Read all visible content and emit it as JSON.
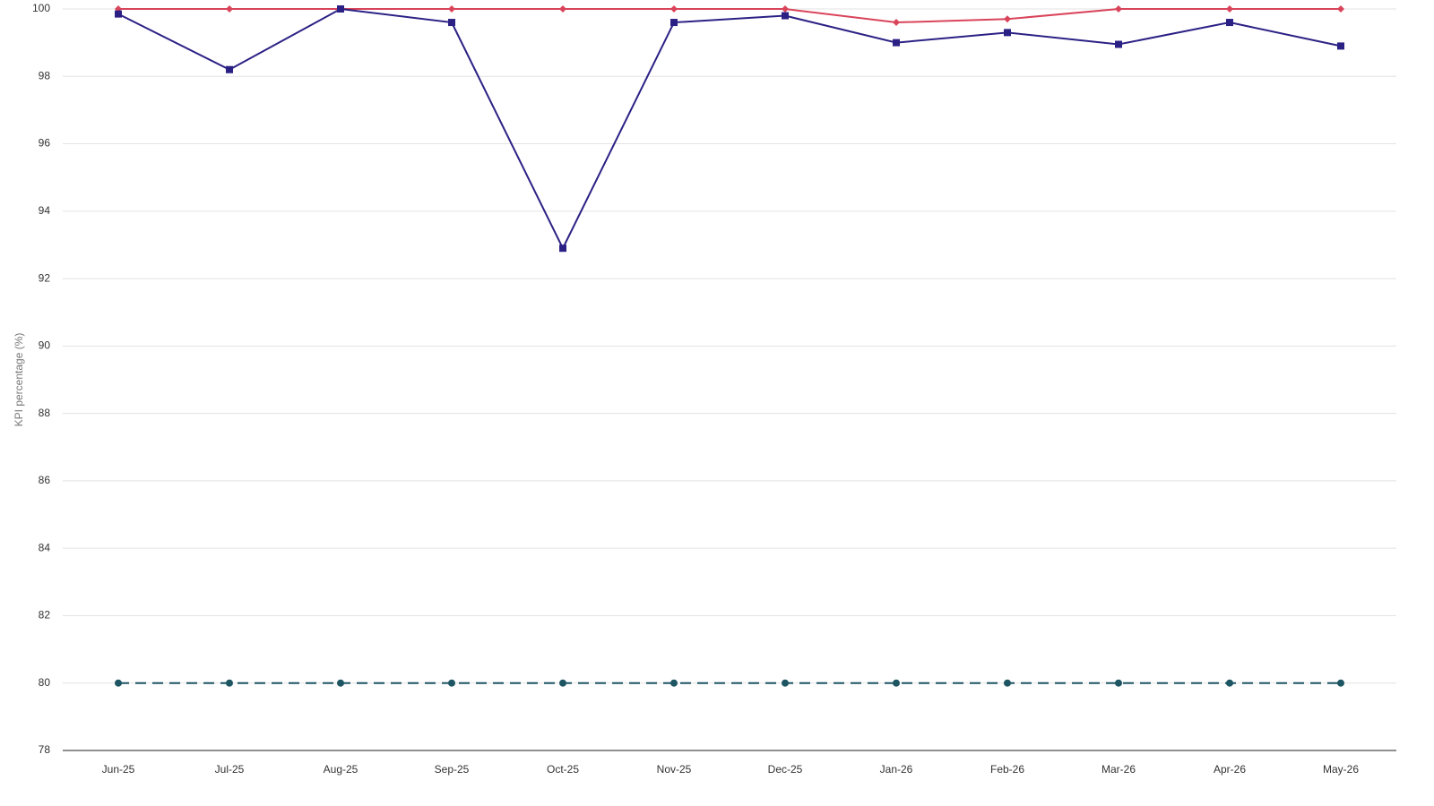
{
  "chart_data": {
    "type": "line",
    "y_label": "KPI percentage (%)",
    "categories": [
      "Jun-25",
      "Jul-25",
      "Aug-25",
      "Sep-25",
      "Oct-25",
      "Nov-25",
      "Dec-25",
      "Jan-26",
      "Feb-26",
      "Mar-26",
      "Apr-26",
      "May-26"
    ],
    "series": [
      {
        "color": "#d9445a",
        "marker": "diamond",
        "dashed": false,
        "values": [
          100,
          100,
          100,
          100,
          100,
          100,
          100,
          99.6,
          99.7,
          100,
          100,
          100
        ]
      },
      {
        "color": "#2b2185",
        "marker": "square",
        "dashed": false,
        "values": [
          99.85,
          98.2,
          100,
          99.6,
          92.9,
          99.6,
          99.8,
          99.0,
          99.3,
          98.95,
          99.6,
          98.9
        ]
      },
      {
        "color": "#1d5563",
        "marker": "circle",
        "dashed": true,
        "values": [
          80,
          80,
          80,
          80,
          80,
          80,
          80,
          80,
          80,
          80,
          80,
          80
        ]
      }
    ],
    "ylim": [
      78,
      100
    ],
    "yticks": [
      78,
      80,
      82,
      84,
      86,
      88,
      90,
      92,
      94,
      96,
      98,
      100
    ],
    "grid": true
  }
}
